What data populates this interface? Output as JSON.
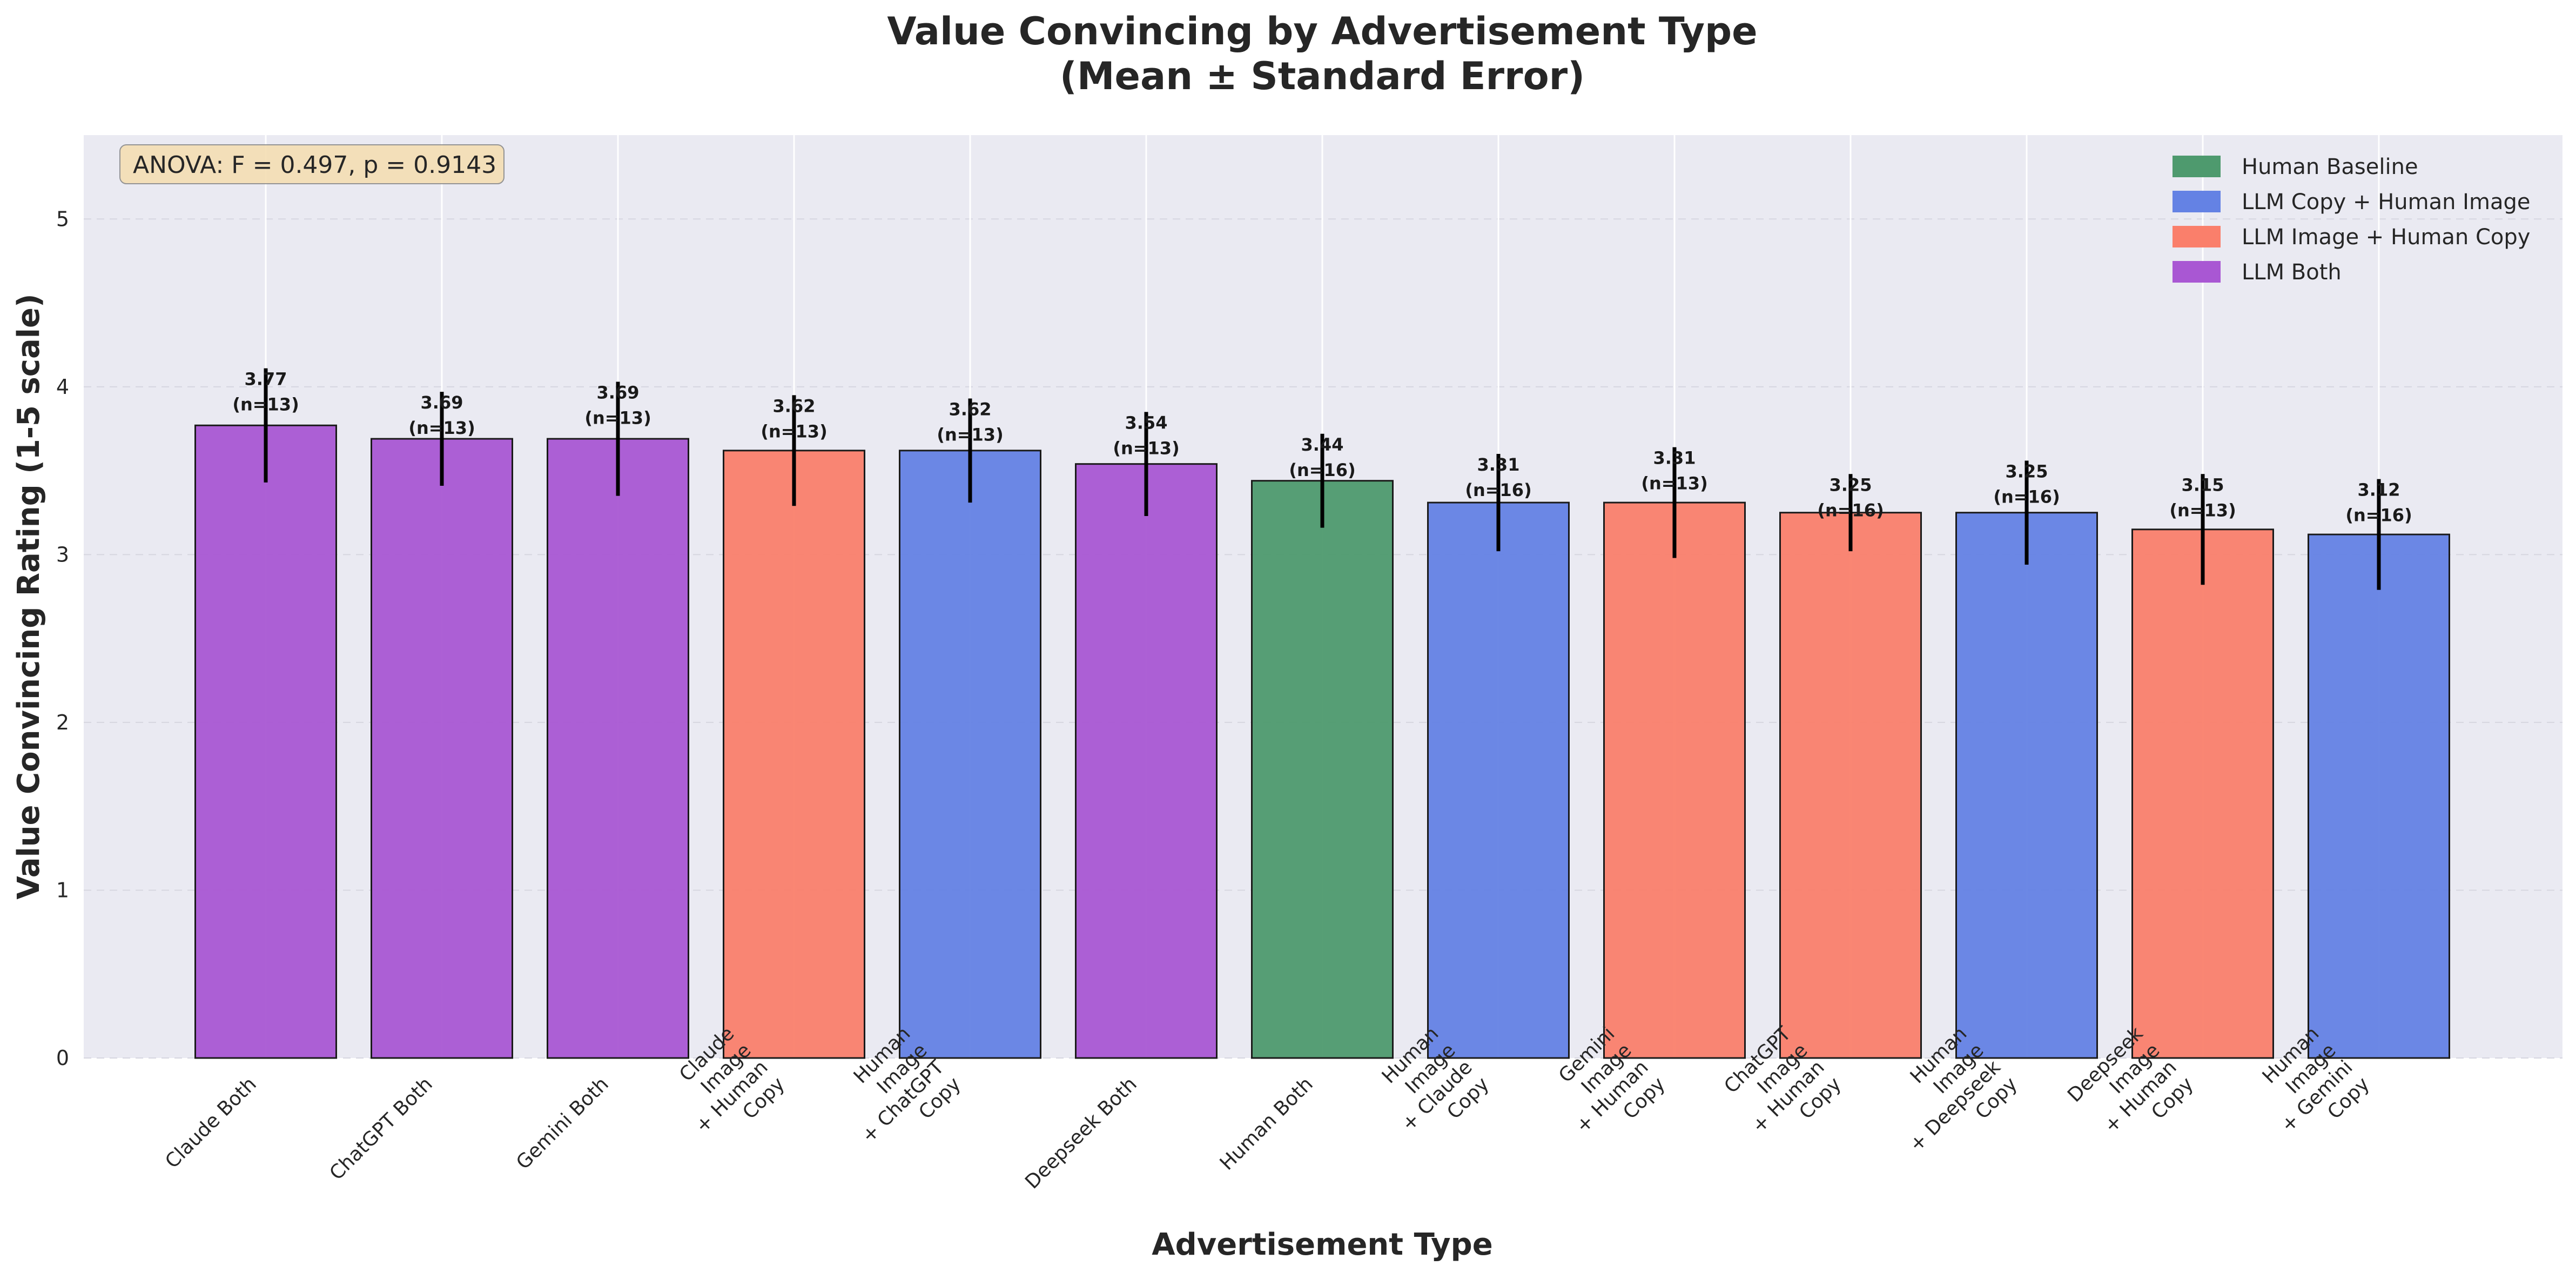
{
  "chart_data": {
    "type": "bar",
    "title": "Value Convincing by Advertisement Type",
    "subtitle": "(Mean ± Standard Error)",
    "xlabel": "Advertisement Type",
    "ylabel": "Value Convincing Rating (1-5 scale)",
    "ylim": [
      0,
      5.5
    ],
    "yticks": [
      "0",
      "1",
      "2",
      "3",
      "4",
      "5"
    ],
    "grid": true,
    "legend_position": "top-right",
    "annotation": "ANOVA: F = 0.497, p = 0.9143",
    "legend": [
      {
        "label": "Human Baseline",
        "group": "human",
        "color": "#4e9a6e"
      },
      {
        "label": "LLM Copy + Human Image",
        "group": "llm_copy",
        "color": "#6482e4"
      },
      {
        "label": "LLM Image + Human Copy",
        "group": "llm_image",
        "color": "#fa7f6b"
      },
      {
        "label": "LLM Both",
        "group": "llm_both",
        "color": "#a957d3"
      }
    ],
    "categories": [
      [
        "Claude Both"
      ],
      [
        "ChatGPT Both"
      ],
      [
        "Gemini Both"
      ],
      [
        "Claude",
        "Image",
        "+ Human",
        "Copy"
      ],
      [
        "Human",
        "Image",
        "+ ChatGPT",
        "Copy"
      ],
      [
        "Deepseek Both"
      ],
      [
        "Human Both"
      ],
      [
        "Human",
        "Image",
        "+ Claude",
        "Copy"
      ],
      [
        "Gemini",
        "Image",
        "+ Human",
        "Copy"
      ],
      [
        "ChatGPT",
        "Image",
        "+ Human",
        "Copy"
      ],
      [
        "Human",
        "Image",
        "+ Deepseek",
        "Copy"
      ],
      [
        "Deepseek",
        "Image",
        "+ Human",
        "Copy"
      ],
      [
        "Human",
        "Image",
        "+ Gemini",
        "Copy"
      ]
    ],
    "values": [
      3.77,
      3.69,
      3.69,
      3.62,
      3.62,
      3.54,
      3.44,
      3.31,
      3.31,
      3.25,
      3.25,
      3.15,
      3.12
    ],
    "errors": [
      0.34,
      0.28,
      0.34,
      0.33,
      0.31,
      0.31,
      0.28,
      0.29,
      0.33,
      0.23,
      0.31,
      0.33,
      0.33
    ],
    "value_labels": [
      "3.77",
      "3.69",
      "3.69",
      "3.62",
      "3.62",
      "3.54",
      "3.44",
      "3.31",
      "3.31",
      "3.25",
      "3.25",
      "3.15",
      "3.12"
    ],
    "n_labels": [
      "(n=13)",
      "(n=13)",
      "(n=13)",
      "(n=13)",
      "(n=13)",
      "(n=13)",
      "(n=16)",
      "(n=16)",
      "(n=13)",
      "(n=16)",
      "(n=16)",
      "(n=13)",
      "(n=16)"
    ],
    "groups": [
      "llm_both",
      "llm_both",
      "llm_both",
      "llm_image",
      "llm_copy",
      "llm_both",
      "human",
      "llm_copy",
      "llm_image",
      "llm_image",
      "llm_copy",
      "llm_image",
      "llm_copy"
    ]
  }
}
